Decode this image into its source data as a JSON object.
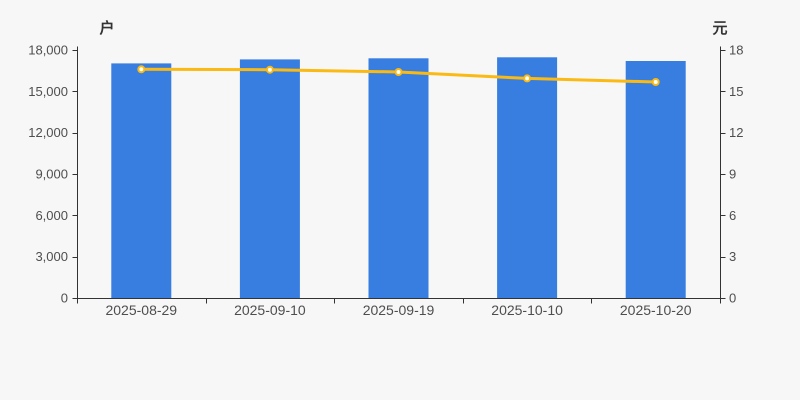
{
  "chart_data": {
    "type": "bar",
    "title": "",
    "categories": [
      "2025-08-29",
      "2025-09-10",
      "2025-09-19",
      "2025-10-10",
      "2025-10-20"
    ],
    "series": [
      {
        "name": "户",
        "type": "bar",
        "y_axis": "left",
        "values": [
          17030,
          17320,
          17400,
          17470,
          17200
        ],
        "color": "#377EE0"
      },
      {
        "name": "元",
        "type": "line",
        "y_axis": "right",
        "values": [
          16.6,
          16.57,
          16.4,
          15.94,
          15.68
        ],
        "color": "#FBBA13",
        "marker": "hollow-circle",
        "marker_fill": "#FFFFFF"
      }
    ],
    "left_axis": {
      "unit_label": "户",
      "min": 0,
      "max": 18000,
      "tick_interval": 3000,
      "tick_labels": [
        "0",
        "3,000",
        "6,000",
        "9,000",
        "12,000",
        "15,000",
        "18,000"
      ]
    },
    "right_axis": {
      "unit_label": "元",
      "min": 0,
      "max": 18,
      "tick_interval": 3,
      "tick_labels": [
        "0",
        "3",
        "6",
        "9",
        "12",
        "15",
        "18"
      ]
    },
    "x_axis": {
      "tick_labels": [
        "2025-08-29",
        "2025-09-10",
        "2025-09-19",
        "2025-10-10",
        "2025-10-20"
      ]
    },
    "grid": false,
    "legend": false
  },
  "colors": {
    "background": "#F7F7F7",
    "bar": "#377EE0",
    "line": "#FBBA13",
    "marker_fill": "#FFFFFF",
    "axis_line": "#333333",
    "tick_label": "#4E4E4E",
    "unit_label": "#333333"
  }
}
